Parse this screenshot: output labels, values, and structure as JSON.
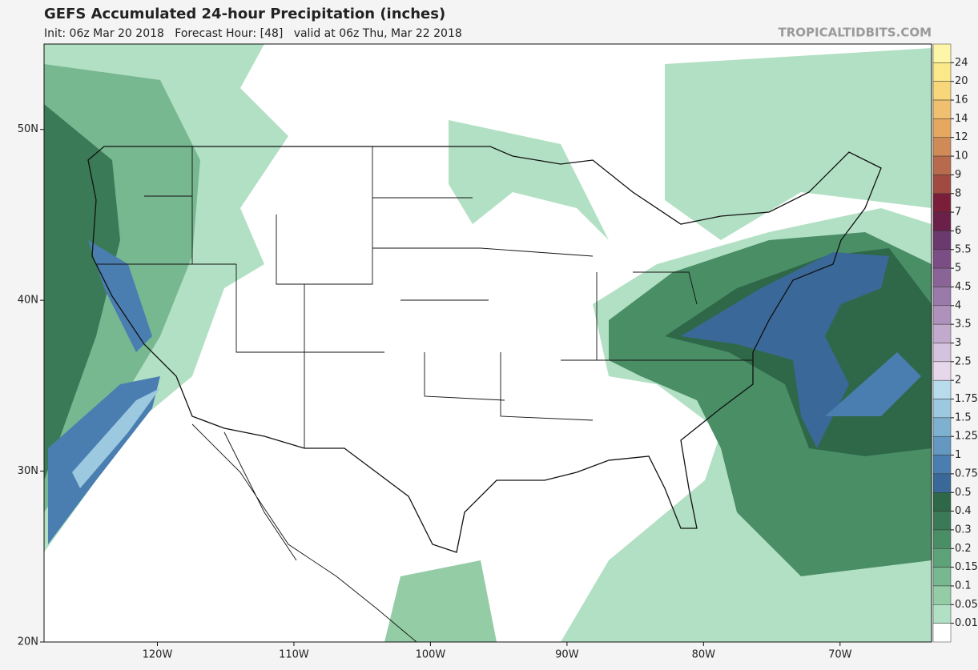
{
  "header": {
    "title": "GEFS Accumulated 24-hour Precipitation (inches)",
    "subtitle": "Init: 06z Mar 20 2018   Forecast Hour: [48]   valid at 06z Thu, Mar 22 2018",
    "brand": "TROPICALTIDBITS.COM"
  },
  "map": {
    "xlim": [
      -128.3,
      -63.3
    ],
    "ylim": [
      20,
      55
    ],
    "xticks": [
      {
        "value": -120,
        "label": "120W"
      },
      {
        "value": -110,
        "label": "110W"
      },
      {
        "value": -100,
        "label": "100W"
      },
      {
        "value": -90,
        "label": "90W"
      },
      {
        "value": -80,
        "label": "80W"
      },
      {
        "value": -70,
        "label": "70W"
      }
    ],
    "yticks": [
      {
        "value": 50,
        "label": "50N"
      },
      {
        "value": 40,
        "label": "40N"
      },
      {
        "value": 30,
        "label": "30N"
      },
      {
        "value": 20,
        "label": "20N"
      }
    ]
  },
  "colorbar": {
    "levels": [
      24,
      20,
      16,
      14,
      12,
      10,
      9,
      8,
      7,
      6,
      5.5,
      5,
      4.5,
      4,
      3.5,
      3,
      2.5,
      2,
      1.75,
      1.5,
      1.25,
      1,
      0.75,
      0.5,
      0.4,
      0.3,
      0.2,
      0.15,
      0.1,
      0.05,
      0.01
    ],
    "colors": [
      "#fdf6a8",
      "#fbe98a",
      "#f7d77a",
      "#f0c070",
      "#e6a860",
      "#d08a58",
      "#b86a4c",
      "#a04a42",
      "#7a1e3a",
      "#6a2048",
      "#6a3a6e",
      "#7a4e84",
      "#8a6496",
      "#9a7aa8",
      "#ae92bc",
      "#c2aacc",
      "#d4c2de",
      "#e6d8ea",
      "#b8dcec",
      "#9cc8e0",
      "#7eb0d0",
      "#6498c0",
      "#4a7eb0",
      "#3a6898",
      "#2e6848",
      "#3a7a56",
      "#4a8e66",
      "#5ea27a",
      "#78b890",
      "#94cca6",
      "#b2e0c4",
      "#ffffff"
    ]
  }
}
